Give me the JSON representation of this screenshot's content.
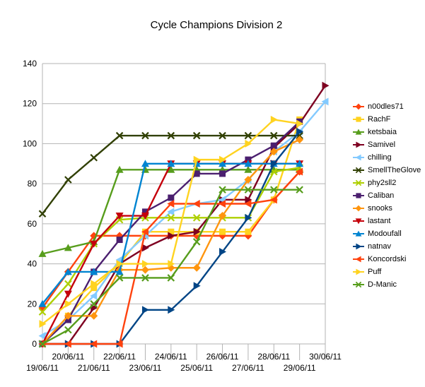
{
  "chart_data": {
    "type": "line",
    "title": "Cycle Champions Division 2",
    "xlabel": "",
    "ylabel": "",
    "ylim": [
      0,
      140
    ],
    "yticks": [
      0,
      20,
      40,
      60,
      80,
      100,
      120,
      140
    ],
    "grid": "horizontal",
    "legend_position": "right",
    "categories": [
      "19/06/11",
      "20/06/11",
      "21/06/11",
      "22/06/11",
      "23/06/11",
      "24/06/11",
      "25/06/11",
      "26/06/11",
      "27/06/11",
      "28/06/11",
      "29/06/11",
      "30/06/11"
    ],
    "series": [
      {
        "name": "n00dles71",
        "color": "#ff420e",
        "marker": "diamond",
        "values": [
          18,
          36,
          54,
          54,
          54,
          54,
          54,
          54,
          54,
          72,
          86,
          null
        ]
      },
      {
        "name": "RachF",
        "color": "#ffd320",
        "marker": "square",
        "values": [
          0,
          14,
          28,
          40,
          56,
          56,
          56,
          56,
          56,
          72,
          112,
          null
        ]
      },
      {
        "name": "ketsbaia",
        "color": "#579d1c",
        "marker": "triangle-up",
        "values": [
          45,
          48,
          51,
          87,
          87,
          87,
          87,
          87,
          87,
          87,
          87,
          null
        ]
      },
      {
        "name": "Samivel",
        "color": "#7e0021",
        "marker": "triangle-right",
        "values": [
          0,
          0,
          18,
          40,
          48,
          54,
          56,
          72,
          72,
          98,
          110,
          129
        ]
      },
      {
        "name": "chilling",
        "color": "#83caff",
        "marker": "triangle-left",
        "values": [
          4,
          12,
          24,
          42,
          54,
          66,
          70,
          72,
          82,
          96,
          106,
          121
        ]
      },
      {
        "name": "SmellTheGlove",
        "color": "#314004",
        "marker": "x",
        "values": [
          65,
          82,
          93,
          104,
          104,
          104,
          104,
          104,
          104,
          104,
          104,
          null
        ]
      },
      {
        "name": "phy2sll2",
        "color": "#aecf00",
        "marker": "x",
        "values": [
          16,
          30,
          50,
          62,
          63,
          63,
          63,
          63,
          63,
          86,
          88,
          null
        ]
      },
      {
        "name": "Caliban",
        "color": "#4b1f6f",
        "marker": "square",
        "values": [
          0,
          12,
          36,
          52,
          66,
          73,
          85,
          85,
          92,
          99,
          111,
          null
        ]
      },
      {
        "name": "snooks",
        "color": "#ff950e",
        "marker": "diamond",
        "values": [
          0,
          14,
          14,
          37,
          37,
          38,
          38,
          64,
          82,
          96,
          102,
          null
        ]
      },
      {
        "name": "lastant",
        "color": "#c5000b",
        "marker": "triangle-down",
        "values": [
          0,
          25,
          50,
          64,
          64,
          90,
          90,
          90,
          90,
          90,
          90,
          null
        ]
      },
      {
        "name": "Modoufall",
        "color": "#0084d1",
        "marker": "triangle-up",
        "values": [
          20,
          36,
          36,
          36,
          90,
          90,
          90,
          90,
          90,
          90,
          90,
          null
        ]
      },
      {
        "name": "natnav",
        "color": "#004586",
        "marker": "triangle-right",
        "values": [
          0,
          0,
          0,
          0,
          17,
          17,
          29,
          46,
          63,
          90,
          106,
          null
        ]
      },
      {
        "name": "Koncordski",
        "color": "#ff420e",
        "marker": "triangle-left",
        "values": [
          0,
          0,
          0,
          0,
          56,
          70,
          70,
          70,
          70,
          72,
          86,
          null
        ]
      },
      {
        "name": "Puff",
        "color": "#ffd320",
        "marker": "triangle-right",
        "values": [
          10,
          20,
          30,
          40,
          40,
          40,
          92,
          92,
          100,
          112,
          110,
          null
        ]
      },
      {
        "name": "D-Manic",
        "color": "#579d1c",
        "marker": "x",
        "values": [
          0,
          7,
          20,
          33,
          33,
          33,
          51,
          77,
          77,
          77,
          77,
          null
        ]
      }
    ]
  }
}
